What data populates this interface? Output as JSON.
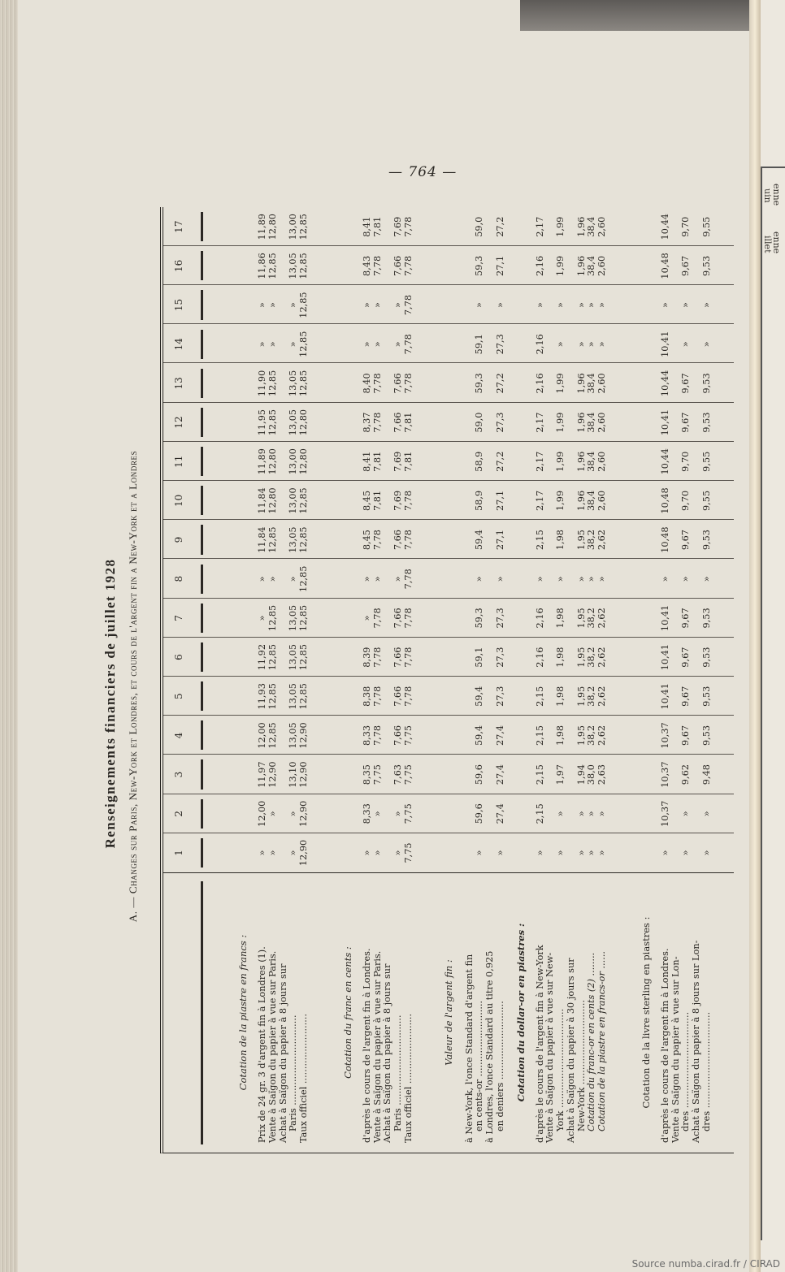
{
  "page_number": "— 764 —",
  "title": "Renseignements financiers de juillet 1928",
  "subtitle": "A. — Changes sur Paris, New-York et Londres, et cours de l'argent fin a New-York et a Londres",
  "footer": "Source numba.cirad.fr / CIRAD",
  "right_page_fragments": [
    "enne",
    "uin",
    "enne",
    "illet"
  ],
  "columns": [
    "1",
    "2",
    "3",
    "4",
    "5",
    "6",
    "7",
    "8",
    "9",
    "10",
    "11",
    "12",
    "13",
    "14",
    "15",
    "16",
    "17"
  ],
  "sections": [
    {
      "heading": "Cotation de la piastre en francs :",
      "style": "italic",
      "entries": [
        {
          "lines": [
            "Prix de 24 gr. 3 d'argent fin à Londres (1)."
          ],
          "values": [
            "»",
            "12,00",
            "11,97",
            "12,00",
            "11,93",
            "11,92",
            "»",
            "»",
            "11,84",
            "11,84",
            "11,89",
            "11,95",
            "11,90",
            "»",
            "»",
            "11,86",
            "11,89"
          ]
        },
        {
          "lines": [
            "Vente à Saïgon du papier à vue sur Paris."
          ],
          "values": [
            "»",
            "»",
            "12,90",
            "12,85",
            "12,85",
            "12,85",
            "12,85",
            "»",
            "12,85",
            "12,80",
            "12,80",
            "12,85",
            "12,85",
            "»",
            "»",
            "12,85",
            "12,80"
          ]
        },
        {
          "lines": [
            "Achat à Saïgon du papier à 8 jours sur",
            "Paris ..............................."
          ],
          "values": [
            "»",
            "»",
            "13,10",
            "13,05",
            "13,05",
            "13,05",
            "13,05",
            "»",
            "13,05",
            "13,00",
            "13,00",
            "13,05",
            "13,05",
            "»",
            "»",
            "13,05",
            "13,00"
          ]
        },
        {
          "lines": [
            "Taux officiel ........................"
          ],
          "values": [
            "12,90",
            "12,90",
            "12,90",
            "12,90",
            "12,85",
            "12,85",
            "12,85",
            "12,85",
            "12,85",
            "12,85",
            "12,80",
            "12,80",
            "12,85",
            "12,85",
            "12,85",
            "12,85",
            "12,85"
          ]
        }
      ]
    },
    {
      "heading": "Cotation du franc en cents :",
      "style": "italic",
      "entries": [
        {
          "lines": [
            "d'après le cours de l'argent fin à Londres."
          ],
          "values": [
            "»",
            "8,33",
            "8,35",
            "8,33",
            "8,38",
            "8,39",
            "»",
            "»",
            "8,45",
            "8,45",
            "8,41",
            "8,37",
            "8,40",
            "»",
            "»",
            "8,43",
            "8,41"
          ]
        },
        {
          "lines": [
            "Vente à Saïgon du papier à vue sur Paris."
          ],
          "values": [
            "»",
            "»",
            "7,75",
            "7,78",
            "7,78",
            "7,78",
            "7,78",
            "»",
            "7,78",
            "7,81",
            "7,81",
            "7,78",
            "7,78",
            "»",
            "»",
            "7,78",
            "7,81"
          ]
        },
        {
          "lines": [
            "Achat à Saïgon du papier à 8 jours sur",
            "Paris ..............................."
          ],
          "values": [
            "»",
            "»",
            "7,63",
            "7,66",
            "7,66",
            "7,66",
            "7,66",
            "»",
            "7,66",
            "7,69",
            "7,69",
            "7,66",
            "7,66",
            "»",
            "»",
            "7,66",
            "7,69"
          ]
        },
        {
          "lines": [
            "Taux officiel ........................"
          ],
          "values": [
            "7,75",
            "7,75",
            "7,75",
            "7,75",
            "7,78",
            "7,78",
            "7,78",
            "7,78",
            "7,78",
            "7,78",
            "7,81",
            "7,81",
            "7,78",
            "7,78",
            "7,78",
            "7,78",
            "7,78"
          ]
        }
      ]
    },
    {
      "heading": "Valeur de l'argent fin :",
      "style": "italic",
      "entries": [
        {
          "lines": [
            "à New-York, l'once Standard d'argent fin",
            "en cents-or .........................."
          ],
          "values": [
            "»",
            "59,6",
            "59,6",
            "59,4",
            "59,4",
            "59,1",
            "59,3",
            "»",
            "59,4",
            "58,9",
            "58,9",
            "59,0",
            "59,3",
            "59,1",
            "»",
            "59,3",
            "59,0"
          ]
        },
        {
          "lines": [
            "à Londres, l'once Standard au titre 0,925",
            "en deniers ..........................."
          ],
          "values": [
            "»",
            "27,4",
            "27,4",
            "27,4",
            "27,3",
            "27,3",
            "27,3",
            "»",
            "27,1",
            "27,1",
            "27,2",
            "27,3",
            "27,2",
            "27,3",
            "»",
            "27,1",
            "27,2"
          ]
        }
      ]
    },
    {
      "heading": "Cotation du dollar-or en piastres :",
      "style": "bold",
      "entries": [
        {
          "lines": [
            "d'après le cours de l'argent fin à New-York"
          ],
          "values": [
            "»",
            "2,15",
            "2,15",
            "2,15",
            "2,15",
            "2,16",
            "2,16",
            "»",
            "2,15",
            "2,17",
            "2,17",
            "2,17",
            "2,16",
            "2,16",
            "»",
            "2,16",
            "2,17"
          ]
        },
        {
          "lines": [
            "Vente à Saïgon du papier à vue sur New-",
            "York .................................."
          ],
          "values": [
            "»",
            "»",
            "1,97",
            "1,98",
            "1,98",
            "1,98",
            "1,98",
            "»",
            "1,98",
            "1,99",
            "1,99",
            "1,99",
            "1,99",
            "»",
            "»",
            "1,99",
            "1,99"
          ]
        },
        {
          "lines": [
            "Achat à Saïgon du papier à 30 jours sur",
            "New-York ............................."
          ],
          "values": [
            "»",
            "»",
            "1,94",
            "1,95",
            "1,95",
            "1,95",
            "1,95",
            "»",
            "1,95",
            "1,96",
            "1,96",
            "1,96",
            "1,96",
            "»",
            "»",
            "1,96",
            "1,96"
          ]
        },
        {
          "lines": [
            "Cotation du franc-or en cents (2) ........"
          ],
          "italic": true,
          "values": [
            "»",
            "»",
            "38,0",
            "38,2",
            "38,2",
            "38,2",
            "38,2",
            "»",
            "38,2",
            "38,4",
            "38,4",
            "38,4",
            "38,4",
            "»",
            "»",
            "38,4",
            "38,4"
          ]
        },
        {
          "lines": [
            "Cotation de la piastre en francs-or ......"
          ],
          "italic": true,
          "values": [
            "»",
            "»",
            "2,63",
            "2,62",
            "2,62",
            "2,62",
            "2,62",
            "»",
            "2,62",
            "2,60",
            "2,60",
            "2,60",
            "2,60",
            "»",
            "»",
            "2,60",
            "2,60"
          ]
        }
      ]
    },
    {
      "heading": "Cotation de la livre sterling en piastres :",
      "style": "plain",
      "entries": [
        {
          "lines": [
            "d'après le cours de l'argent fin à Londres."
          ],
          "values": [
            "»",
            "10,37",
            "10,37",
            "10,37",
            "10,41",
            "10,41",
            "10,41",
            "»",
            "10,48",
            "10,48",
            "10,44",
            "10,41",
            "10,44",
            "10,41",
            "»",
            "10,48",
            "10,44"
          ]
        },
        {
          "lines": [
            "Vente à Saïgon du papier à vue sur Lon-",
            "dres ................................."
          ],
          "values": [
            "»",
            "»",
            "9,62",
            "9,67",
            "9,67",
            "9,67",
            "9,67",
            "»",
            "9,67",
            "9,70",
            "9,70",
            "9,67",
            "9,67",
            "»",
            "»",
            "9,67",
            "9,70"
          ]
        },
        {
          "lines": [
            "Achat à Saïgon du papier à 8 jours sur Lon-",
            "dres ................................."
          ],
          "values": [
            "»",
            "»",
            "9,48",
            "9,53",
            "9,53",
            "9,53",
            "9,53",
            "»",
            "9,53",
            "9,55",
            "9,55",
            "9,53",
            "9,53",
            "»",
            "»",
            "9,53",
            "9,55"
          ]
        }
      ]
    }
  ],
  "colors": {
    "paper": "#e6e2d8",
    "ink": "#2b2824"
  }
}
